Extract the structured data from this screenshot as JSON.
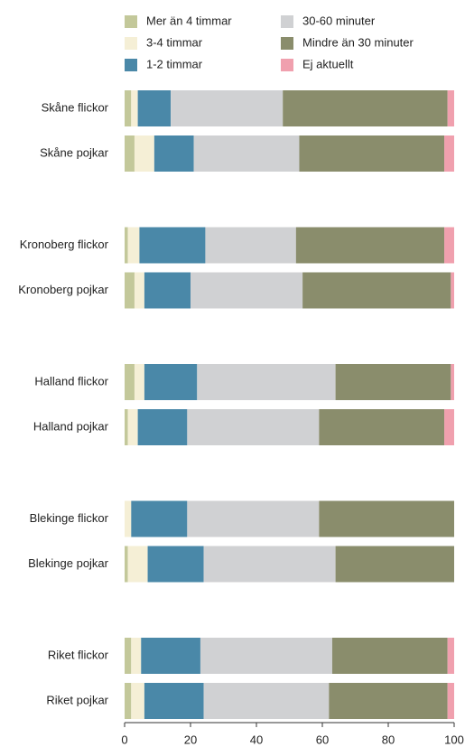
{
  "chart_data": {
    "type": "stacked-barh",
    "categories": [
      "Skåne flickor",
      "Skåne pojkar",
      "Kronoberg flickor",
      "Kronoberg pojkar",
      "Halland flickor",
      "Halland pojkar",
      "Blekinge flickor",
      "Blekinge pojkar",
      "Riket flickor",
      "Riket pojkar"
    ],
    "series": [
      {
        "name": "Mer än 4 timmar",
        "color": "#c3c89a",
        "values": [
          2,
          3,
          1,
          3,
          3,
          1,
          0,
          1,
          2,
          2
        ]
      },
      {
        "name": "3-4 timmar",
        "color": "#f5efd6",
        "values": [
          2,
          6,
          3.5,
          3,
          3,
          3,
          2,
          6,
          3,
          4
        ]
      },
      {
        "name": "1-2 timmar",
        "color": "#4a88a8",
        "values": [
          10,
          12,
          20,
          14,
          16,
          15,
          17,
          17,
          18,
          18
        ]
      },
      {
        "name": "30-60 minuter",
        "color": "#d0d1d3",
        "values": [
          34,
          32,
          27.5,
          34,
          42,
          40,
          40,
          40,
          40,
          38
        ]
      },
      {
        "name": "Mindre än 30 minuter",
        "color": "#8a8d6c",
        "values": [
          50,
          44,
          45,
          45,
          35,
          38,
          41,
          36,
          35,
          36
        ]
      },
      {
        "name": "Ej aktuellt",
        "color": "#f0a0ae",
        "values": [
          2,
          3,
          3,
          1,
          1,
          3,
          0,
          0,
          2,
          2
        ]
      }
    ],
    "xlim": [
      0,
      100
    ],
    "xticks": [
      0,
      20,
      40,
      60,
      80,
      100
    ]
  }
}
